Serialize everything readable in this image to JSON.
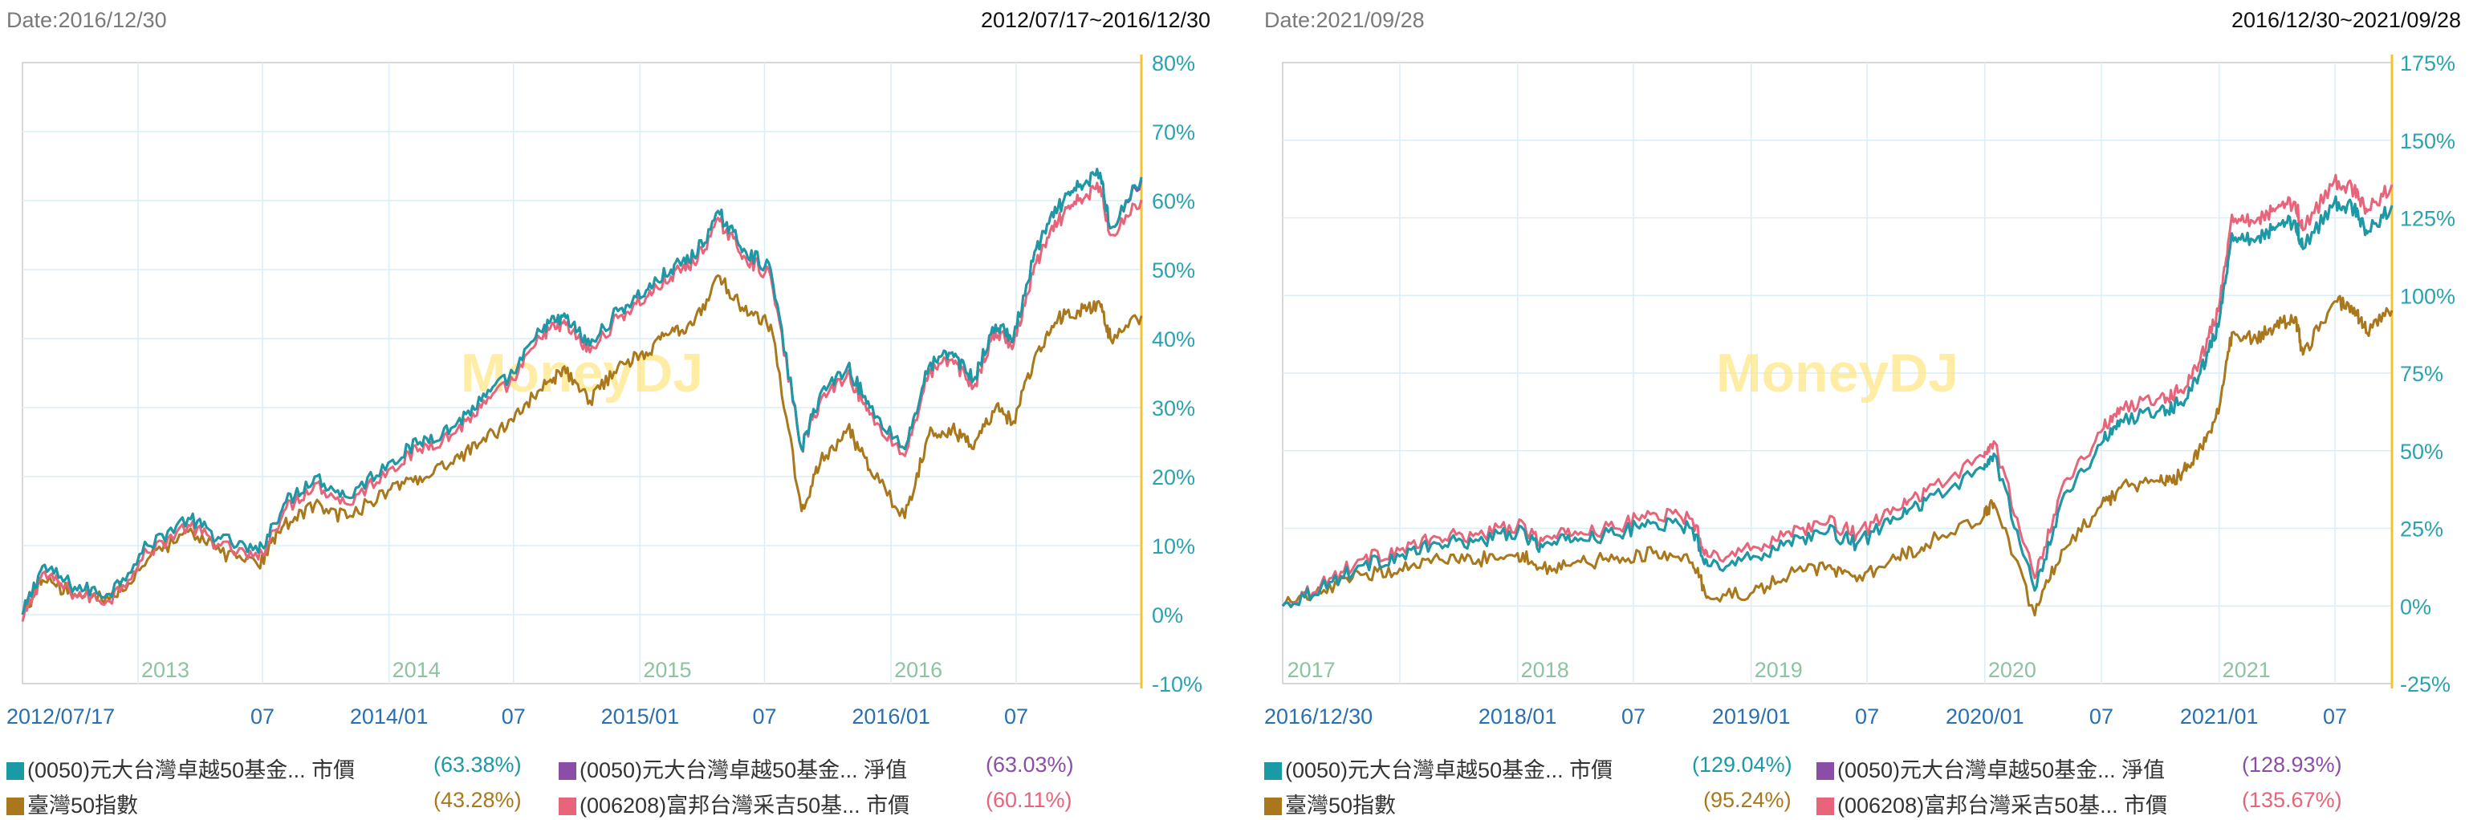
{
  "colors": {
    "etf0050_price": "#1a9aa4",
    "etf0050_nav": "#8b4ea6",
    "index": "#a9781c",
    "etf006208_price": "#e8647a",
    "axis": "#f4c430",
    "grid": "#d9eef7",
    "frame": "#cccccc",
    "ytick": "#2aa3b1",
    "xtick": "#2a6fb0",
    "year": "#8cc4a0"
  },
  "watermark": "MoneyDJ",
  "chart_data": [
    {
      "type": "line",
      "date_label": "Date:2016/12/30",
      "range_label": "2012/07/17~2016/12/30",
      "x_range": [
        "2012/07/17",
        "2016/12/30"
      ],
      "ylim": [
        -10,
        80
      ],
      "yticks": [
        "80%",
        "70%",
        "60%",
        "50%",
        "40%",
        "30%",
        "20%",
        "10%",
        "0%",
        "-10%"
      ],
      "xticks": [
        "2012/07/17",
        "07",
        "2014/01",
        "07",
        "2015/01",
        "07",
        "2016/01",
        "07"
      ],
      "year_labels": [
        "2013",
        "2014",
        "2015",
        "2016"
      ],
      "grid": true,
      "series": [
        {
          "name": "(0050)元大台灣卓越50基金... 市價",
          "pct": "(63.38%)",
          "x": [
            "2012/07/17",
            "2012/08/15",
            "2012/10/01",
            "2012/11/20",
            "2013/01/15",
            "2013/03/15",
            "2013/05/01",
            "2013/06/25",
            "2013/08/01",
            "2013/09/15",
            "2013/11/01",
            "2013/12/31",
            "2014/02/15",
            "2014/04/01",
            "2014/05/15",
            "2014/07/01",
            "2014/08/15",
            "2014/09/15",
            "2014/10/20",
            "2014/11/30",
            "2015/01/10",
            "2015/02/15",
            "2015/03/20",
            "2015/04/27",
            "2015/06/01",
            "2015/07/10",
            "2015/08/24",
            "2015/09/20",
            "2015/10/30",
            "2015/12/01",
            "2016/01/21",
            "2016/02/25",
            "2016/03/30",
            "2016/04/30",
            "2016/06/01",
            "2016/06/27",
            "2016/07/30",
            "2016/08/31",
            "2016/09/30",
            "2016/10/31",
            "2016/11/15",
            "2016/12/30"
          ],
          "values": [
            0,
            7,
            4,
            3,
            10,
            14,
            11,
            9,
            16,
            20,
            17,
            22,
            25,
            27,
            31,
            35,
            42,
            43,
            39,
            44,
            47,
            50,
            52,
            58,
            53,
            50,
            24,
            32,
            36,
            30,
            24,
            36,
            38,
            34,
            42,
            40,
            53,
            59,
            62,
            64,
            56,
            63.4
          ]
        },
        {
          "name": "(0050)元大台灣卓越50基金... 淨值",
          "pct": "(63.03%)",
          "x": [
            "2012/07/17",
            "2012/08/15",
            "2012/10/01",
            "2012/11/20",
            "2013/01/15",
            "2013/03/15",
            "2013/05/01",
            "2013/06/25",
            "2013/08/01",
            "2013/09/15",
            "2013/11/01",
            "2013/12/31",
            "2014/02/15",
            "2014/04/01",
            "2014/05/15",
            "2014/07/01",
            "2014/08/15",
            "2014/09/15",
            "2014/10/20",
            "2014/11/30",
            "2015/01/10",
            "2015/02/15",
            "2015/03/20",
            "2015/04/27",
            "2015/06/01",
            "2015/07/10",
            "2015/08/24",
            "2015/09/20",
            "2015/10/30",
            "2015/12/01",
            "2016/01/21",
            "2016/02/25",
            "2016/03/30",
            "2016/04/30",
            "2016/06/01",
            "2016/06/27",
            "2016/07/30",
            "2016/08/31",
            "2016/09/30",
            "2016/10/31",
            "2016/11/15",
            "2016/12/30"
          ],
          "values": [
            0,
            7,
            4,
            3,
            10,
            14,
            11,
            9,
            16,
            20,
            17,
            22,
            25,
            27,
            31,
            35,
            42,
            43,
            39,
            44,
            47,
            50,
            52,
            58,
            53,
            50,
            24,
            32,
            36,
            30,
            24,
            36,
            38,
            34,
            42,
            40,
            53,
            59,
            62,
            64,
            56,
            63.0
          ]
        },
        {
          "name": "臺灣50指數",
          "pct": "(43.28%)",
          "x": [
            "2012/07/17",
            "2012/08/15",
            "2012/10/01",
            "2012/11/20",
            "2013/01/15",
            "2013/03/15",
            "2013/05/01",
            "2013/06/25",
            "2013/08/01",
            "2013/09/15",
            "2013/11/01",
            "2013/12/31",
            "2014/02/15",
            "2014/04/01",
            "2014/05/15",
            "2014/07/01",
            "2014/08/15",
            "2014/09/15",
            "2014/10/20",
            "2014/11/30",
            "2015/01/10",
            "2015/02/15",
            "2015/03/20",
            "2015/04/27",
            "2015/06/01",
            "2015/07/10",
            "2015/08/24",
            "2015/09/20",
            "2015/10/30",
            "2015/12/01",
            "2016/01/21",
            "2016/02/25",
            "2016/03/30",
            "2016/04/30",
            "2016/06/01",
            "2016/06/27",
            "2016/07/30",
            "2016/08/31",
            "2016/09/30",
            "2016/10/31",
            "2016/11/15",
            "2016/12/30"
          ],
          "values": [
            0,
            5,
            3,
            2,
            8,
            12,
            9,
            7,
            13,
            16,
            14,
            18,
            20,
            22,
            25,
            28,
            34,
            35,
            31,
            36,
            38,
            41,
            42,
            49,
            44,
            42,
            15,
            22,
            27,
            21,
            14,
            26,
            27,
            24,
            30,
            28,
            38,
            43,
            44,
            45,
            40,
            43.3
          ]
        },
        {
          "name": "(006208)富邦台灣采吉50基... 市價",
          "pct": "(60.11%)",
          "x": [
            "2012/07/17",
            "2012/08/15",
            "2012/10/01",
            "2012/11/20",
            "2013/01/15",
            "2013/03/15",
            "2013/05/01",
            "2013/06/25",
            "2013/08/01",
            "2013/09/15",
            "2013/11/01",
            "2013/12/31",
            "2014/02/15",
            "2014/04/01",
            "2014/05/15",
            "2014/07/01",
            "2014/08/15",
            "2014/09/15",
            "2014/10/20",
            "2014/11/30",
            "2015/01/10",
            "2015/02/15",
            "2015/03/20",
            "2015/04/27",
            "2015/06/01",
            "2015/07/10",
            "2015/08/24",
            "2015/09/20",
            "2015/10/30",
            "2015/12/01",
            "2016/01/21",
            "2016/02/25",
            "2016/03/30",
            "2016/04/30",
            "2016/06/01",
            "2016/06/27",
            "2016/07/30",
            "2016/08/31",
            "2016/09/30",
            "2016/10/31",
            "2016/11/15",
            "2016/12/30"
          ],
          "values": [
            -1,
            6,
            3,
            2,
            9,
            13,
            10,
            8,
            15,
            19,
            16,
            21,
            24,
            26,
            30,
            34,
            41,
            42,
            38,
            43,
            46,
            49,
            51,
            57,
            52,
            49,
            24,
            31,
            35,
            29,
            23,
            35,
            37,
            33,
            41,
            39,
            51,
            57,
            60,
            62,
            55,
            60.1
          ]
        }
      ]
    },
    {
      "type": "line",
      "date_label": "Date:2021/09/28",
      "range_label": "2016/12/30~2021/09/28",
      "x_range": [
        "2016/12/30",
        "2021/09/28"
      ],
      "ylim": [
        -25,
        175
      ],
      "yticks": [
        "175%",
        "150%",
        "125%",
        "100%",
        "75%",
        "50%",
        "25%",
        "0%",
        "-25%"
      ],
      "xticks": [
        "2016/12/30",
        "2018/01",
        "07",
        "2019/01",
        "07",
        "2020/01",
        "07",
        "2021/01",
        "07"
      ],
      "year_labels": [
        "2017",
        "2018",
        "2019",
        "2020",
        "2021"
      ],
      "grid": true,
      "series": [
        {
          "name": "(0050)元大台灣卓越50基金... 市價",
          "pct": "(129.04%)",
          "x": [
            "2016/12/30",
            "2017/02/28",
            "2017/05/01",
            "2017/07/01",
            "2017/09/01",
            "2017/11/01",
            "2018/01/01",
            "2018/02/09",
            "2018/04/01",
            "2018/06/01",
            "2018/08/01",
            "2018/10/01",
            "2018/10/25",
            "2018/12/31",
            "2019/03/01",
            "2019/05/01",
            "2019/06/15",
            "2019/08/15",
            "2019/10/01",
            "2019/12/31",
            "2020/01/15",
            "2020/03/19",
            "2020/04/30",
            "2020/06/30",
            "2020/07/31",
            "2020/09/30",
            "2020/10/31",
            "2020/11/30",
            "2020/12/31",
            "2021/01/21",
            "2021/02/28",
            "2021/03/31",
            "2021/04/30",
            "2021/05/12",
            "2021/06/30",
            "2021/07/31",
            "2021/08/20",
            "2021/09/28"
          ],
          "values": [
            0,
            6,
            13,
            16,
            20,
            21,
            24,
            19,
            22,
            23,
            27,
            25,
            13,
            15,
            21,
            24,
            20,
            28,
            34,
            44,
            49,
            5,
            34,
            52,
            60,
            63,
            65,
            74,
            90,
            120,
            118,
            122,
            124,
            115,
            130,
            128,
            120,
            129
          ]
        },
        {
          "name": "(0050)元大台灣卓越50基金... 淨值",
          "pct": "(128.93%)",
          "x": [
            "2016/12/30",
            "2017/02/28",
            "2017/05/01",
            "2017/07/01",
            "2017/09/01",
            "2017/11/01",
            "2018/01/01",
            "2018/02/09",
            "2018/04/01",
            "2018/06/01",
            "2018/08/01",
            "2018/10/01",
            "2018/10/25",
            "2018/12/31",
            "2019/03/01",
            "2019/05/01",
            "2019/06/15",
            "2019/08/15",
            "2019/10/01",
            "2019/12/31",
            "2020/01/15",
            "2020/03/19",
            "2020/04/30",
            "2020/06/30",
            "2020/07/31",
            "2020/09/30",
            "2020/10/31",
            "2020/11/30",
            "2020/12/31",
            "2021/01/21",
            "2021/02/28",
            "2021/03/31",
            "2021/04/30",
            "2021/05/12",
            "2021/06/30",
            "2021/07/31",
            "2021/08/20",
            "2021/09/28"
          ],
          "values": [
            0,
            6,
            13,
            16,
            20,
            21,
            24,
            19,
            22,
            23,
            27,
            25,
            13,
            15,
            21,
            24,
            20,
            28,
            34,
            44,
            49,
            5,
            34,
            52,
            60,
            63,
            65,
            74,
            90,
            120,
            118,
            122,
            124,
            115,
            130,
            128,
            120,
            128.9
          ]
        },
        {
          "name": "臺灣50指數",
          "pct": "(95.24%)",
          "x": [
            "2016/12/30",
            "2017/02/28",
            "2017/05/01",
            "2017/07/01",
            "2017/09/01",
            "2017/11/01",
            "2018/01/01",
            "2018/02/09",
            "2018/04/01",
            "2018/06/01",
            "2018/08/01",
            "2018/10/01",
            "2018/10/25",
            "2018/12/31",
            "2019/03/01",
            "2019/05/01",
            "2019/06/15",
            "2019/08/15",
            "2019/10/01",
            "2019/12/31",
            "2020/01/15",
            "2020/03/19",
            "2020/04/30",
            "2020/06/30",
            "2020/07/31",
            "2020/09/30",
            "2020/10/31",
            "2020/11/30",
            "2020/12/31",
            "2021/01/21",
            "2021/02/28",
            "2021/03/31",
            "2021/04/30",
            "2021/05/12",
            "2021/06/30",
            "2021/07/31",
            "2021/08/20",
            "2021/09/28"
          ],
          "values": [
            0,
            4,
            10,
            12,
            15,
            15,
            17,
            12,
            14,
            15,
            17,
            14,
            3,
            4,
            10,
            13,
            8,
            15,
            20,
            29,
            33,
            -3,
            18,
            32,
            38,
            40,
            42,
            50,
            62,
            88,
            86,
            90,
            93,
            81,
            98,
            96,
            88,
            95.2
          ]
        },
        {
          "name": "(006208)富邦台灣采吉50基... 市價",
          "pct": "(135.67%)",
          "x": [
            "2016/12/30",
            "2017/02/28",
            "2017/05/01",
            "2017/07/01",
            "2017/09/01",
            "2017/11/01",
            "2018/01/01",
            "2018/02/09",
            "2018/04/01",
            "2018/06/01",
            "2018/08/01",
            "2018/10/01",
            "2018/10/25",
            "2018/12/31",
            "2019/03/01",
            "2019/05/01",
            "2019/06/15",
            "2019/08/15",
            "2019/10/01",
            "2019/12/31",
            "2020/01/15",
            "2020/03/19",
            "2020/04/30",
            "2020/06/30",
            "2020/07/31",
            "2020/09/30",
            "2020/10/31",
            "2020/11/30",
            "2020/12/31",
            "2021/01/21",
            "2021/02/28",
            "2021/03/31",
            "2021/04/30",
            "2021/05/12",
            "2021/06/30",
            "2021/07/31",
            "2021/08/20",
            "2021/09/28"
          ],
          "values": [
            0,
            7,
            15,
            18,
            22,
            23,
            26,
            21,
            24,
            25,
            30,
            28,
            16,
            18,
            24,
            27,
            23,
            31,
            37,
            48,
            53,
            9,
            38,
            56,
            64,
            67,
            69,
            78,
            95,
            126,
            124,
            128,
            130,
            121,
            137,
            134,
            127,
            135.7
          ]
        }
      ]
    }
  ]
}
